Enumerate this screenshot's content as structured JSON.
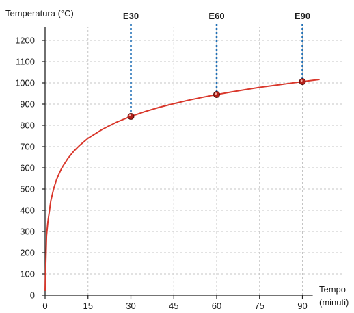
{
  "chart_data": {
    "type": "line",
    "ylabel": "Temperatura (°C)",
    "xlabel_line1": "Tempo",
    "xlabel_line2": "(minuti)",
    "xlim": [
      0,
      96
    ],
    "ylim": [
      0,
      1260
    ],
    "x_ticks": [
      0,
      15,
      30,
      45,
      60,
      75,
      90
    ],
    "y_ticks": [
      0,
      100,
      200,
      300,
      400,
      500,
      600,
      700,
      800,
      900,
      1000,
      1100,
      1200
    ],
    "grid": true,
    "curve_color": "#d9372b",
    "marker_line_color": "#1f6fb5",
    "series": [
      {
        "x": [
          0,
          0.25,
          0.5,
          1,
          1.5,
          2,
          3,
          4,
          5,
          6,
          8,
          10,
          12,
          15,
          20,
          25,
          30,
          35,
          40,
          45,
          50,
          55,
          60,
          65,
          70,
          75,
          80,
          85,
          90,
          96
        ],
        "values": [
          20,
          155,
          280,
          349,
          396,
          445,
          502,
          544,
          576,
          603,
          645,
          678,
          705,
          739,
          781,
          815,
          842,
          865,
          885,
          902,
          918,
          932,
          945,
          957,
          968,
          979,
          988,
          997,
          1006,
          1016
        ]
      }
    ],
    "markers": [
      {
        "label": "E30",
        "x": 30,
        "y": 842
      },
      {
        "label": "E60",
        "x": 60,
        "y": 945
      },
      {
        "label": "E90",
        "x": 90,
        "y": 1006
      }
    ]
  }
}
